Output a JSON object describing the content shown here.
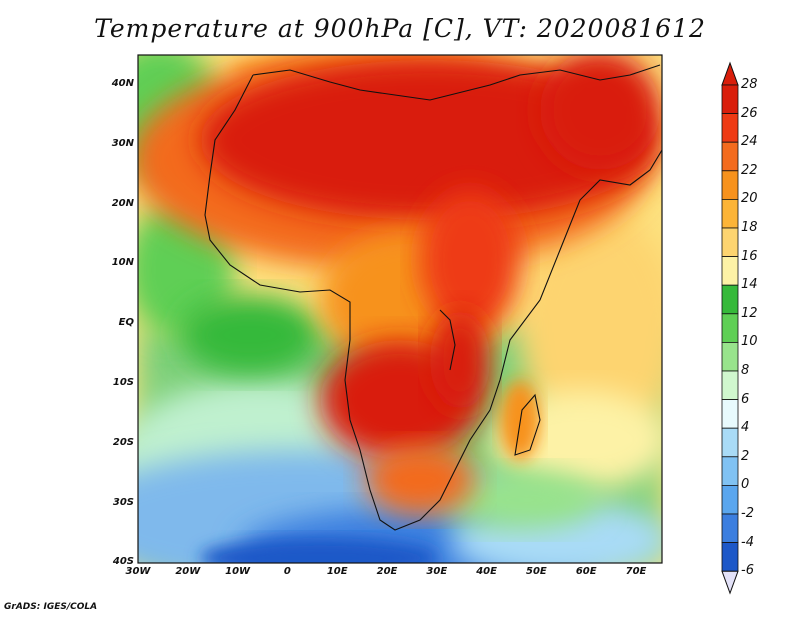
{
  "title": "Temperature at 900hPa [C], VT: 2020081612",
  "lat_labels": [
    "40N",
    "30N",
    "20N",
    "10N",
    "EQ",
    "10S",
    "20S",
    "30S",
    "40S"
  ],
  "lon_labels": [
    "30W",
    "20W",
    "10W",
    "0",
    "10E",
    "20E",
    "30E",
    "40E",
    "50E",
    "60E",
    "70E"
  ],
  "colorbar": {
    "levels": [
      "28",
      "26",
      "24",
      "22",
      "20",
      "18",
      "16",
      "14",
      "12",
      "10",
      "8",
      "6",
      "4",
      "2",
      "0",
      "-2",
      "-4",
      "-6"
    ],
    "colors": [
      "#d91e0b",
      "#ee3a14",
      "#f36b1e",
      "#f7921d",
      "#fcb437",
      "#fdd470",
      "#fdf2a6",
      "#36b93a",
      "#5fcf55",
      "#98e38c",
      "#d0f7ce",
      "#e8fafd",
      "#a9dbf6",
      "#80c2f3",
      "#5aa6ee",
      "#3b7edf",
      "#1d58c8",
      "#0b2f9c",
      "#081774"
    ],
    "over_color": "#d91e0b",
    "under_color": "#e3e2f8"
  },
  "credit": "GrADS: IGES/COLA"
}
